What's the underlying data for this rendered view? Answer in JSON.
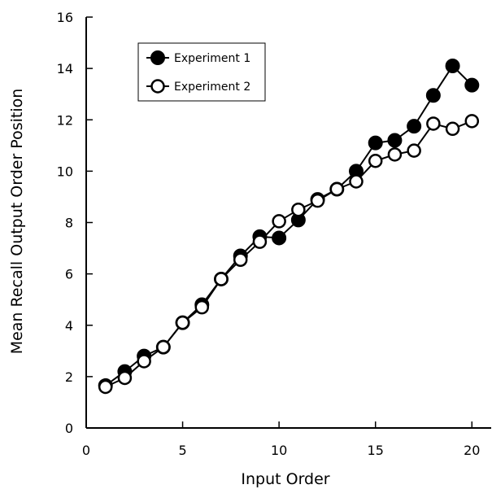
{
  "chart_data": {
    "type": "line",
    "xlabel": "Input Order",
    "ylabel": "Mean Recall Output Order Position",
    "xlim": [
      0,
      21
    ],
    "ylim": [
      0,
      16
    ],
    "xticks": [
      0,
      5,
      10,
      15,
      20
    ],
    "yticks": [
      0,
      2,
      4,
      6,
      8,
      10,
      12,
      14,
      16
    ],
    "legend_position": "top-left",
    "series": [
      {
        "name": "Experiment 1",
        "marker": "filled-circle",
        "color": "#000000",
        "x": [
          1,
          2,
          3,
          4,
          5,
          6,
          7,
          8,
          9,
          10,
          11,
          12,
          13,
          14,
          15,
          16,
          17,
          18,
          19,
          20
        ],
        "y": [
          1.65,
          2.2,
          2.8,
          3.15,
          4.1,
          4.8,
          5.8,
          6.7,
          7.45,
          7.4,
          8.1,
          8.9,
          9.3,
          10.0,
          11.1,
          11.2,
          11.75,
          12.95,
          14.1,
          13.35
        ]
      },
      {
        "name": "Experiment 2",
        "marker": "open-circle",
        "color": "#000000",
        "x": [
          1,
          2,
          3,
          4,
          5,
          6,
          7,
          8,
          9,
          10,
          11,
          12,
          13,
          14,
          15,
          16,
          17,
          18,
          19,
          20
        ],
        "y": [
          1.6,
          1.95,
          2.6,
          3.15,
          4.1,
          4.7,
          5.8,
          6.55,
          7.25,
          8.05,
          8.5,
          8.85,
          9.3,
          9.6,
          10.4,
          10.65,
          10.8,
          11.85,
          11.65,
          11.95
        ]
      }
    ]
  }
}
